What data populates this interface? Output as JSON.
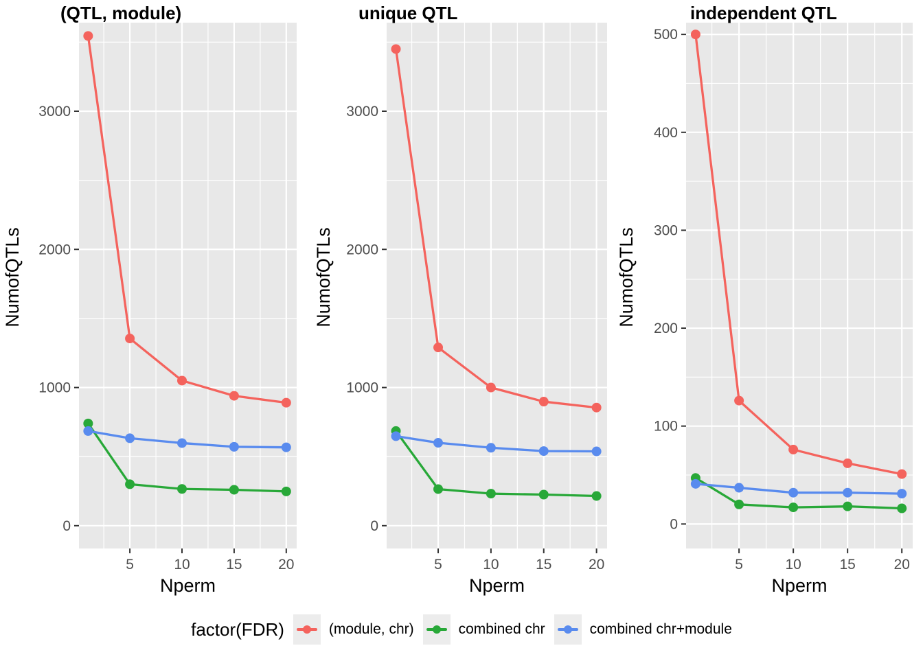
{
  "figure": {
    "background": "#FFFFFF",
    "panel_background": "#E8E8E8",
    "gridline_color": "#FFFFFF",
    "tick_color": "#333333",
    "tick_label_color": "#4D4D4D",
    "axis_title_color": "#000000",
    "panel_title_color": "#000000"
  },
  "legend": {
    "title": "factor(FDR)",
    "position": "bottom",
    "entries": [
      {
        "label": "(module, chr)",
        "color": "#F4635D"
      },
      {
        "label": "combined chr",
        "color": "#28A838"
      },
      {
        "label": "combined chr+module",
        "color": "#598BEE"
      }
    ]
  },
  "chart_data": [
    {
      "type": "line",
      "title": "(QTL, module)",
      "xlabel": "Nperm",
      "ylabel": "NumofQTLs",
      "x": [
        1,
        5,
        10,
        15,
        20
      ],
      "xticks": [
        5,
        10,
        15,
        20
      ],
      "yticks": [
        0,
        1000,
        2000,
        3000
      ],
      "xlim": [
        0.12,
        21.0
      ],
      "ylim": [
        -165,
        3641
      ],
      "grid": true,
      "legend_position": "bottom",
      "series": [
        {
          "name": "(module, chr)",
          "color": "#F4635D",
          "values": [
            3545,
            1355,
            1050,
            940,
            890
          ]
        },
        {
          "name": "combined chr",
          "color": "#28A838",
          "values": [
            740,
            300,
            266,
            260,
            248
          ]
        },
        {
          "name": "combined chr+module",
          "color": "#598BEE",
          "values": [
            685,
            633,
            598,
            571,
            567
          ]
        }
      ]
    },
    {
      "type": "line",
      "title": "unique QTL",
      "xlabel": "Nperm",
      "ylabel": "NumofQTLs",
      "x": [
        1,
        5,
        10,
        15,
        20
      ],
      "xticks": [
        5,
        10,
        15,
        20
      ],
      "yticks": [
        0,
        1000,
        2000,
        3000
      ],
      "xlim": [
        0.12,
        21.0
      ],
      "ylim": [
        -165,
        3641
      ],
      "grid": true,
      "legend_position": "bottom",
      "series": [
        {
          "name": "(module, chr)",
          "color": "#F4635D",
          "values": [
            3450,
            1290,
            1000,
            898,
            855
          ]
        },
        {
          "name": "combined chr",
          "color": "#28A838",
          "values": [
            685,
            265,
            232,
            225,
            215
          ]
        },
        {
          "name": "combined chr+module",
          "color": "#598BEE",
          "values": [
            648,
            600,
            564,
            540,
            538
          ]
        }
      ]
    },
    {
      "type": "line",
      "title": "independent QTL",
      "xlabel": "Nperm",
      "ylabel": "NumofQTLs",
      "x": [
        1,
        5,
        10,
        15,
        20
      ],
      "xticks": [
        5,
        10,
        15,
        20
      ],
      "yticks": [
        0,
        100,
        200,
        300,
        400,
        500
      ],
      "xlim": [
        0.12,
        21.0
      ],
      "ylim": [
        -25,
        512
      ],
      "grid": true,
      "legend_position": "bottom",
      "series": [
        {
          "name": "(module, chr)",
          "color": "#F4635D",
          "values": [
            500,
            126,
            76,
            62,
            51
          ]
        },
        {
          "name": "combined chr",
          "color": "#28A838",
          "values": [
            47,
            20,
            17,
            18,
            16
          ]
        },
        {
          "name": "combined chr+module",
          "color": "#598BEE",
          "values": [
            41,
            37,
            32,
            32,
            31
          ]
        }
      ]
    }
  ]
}
